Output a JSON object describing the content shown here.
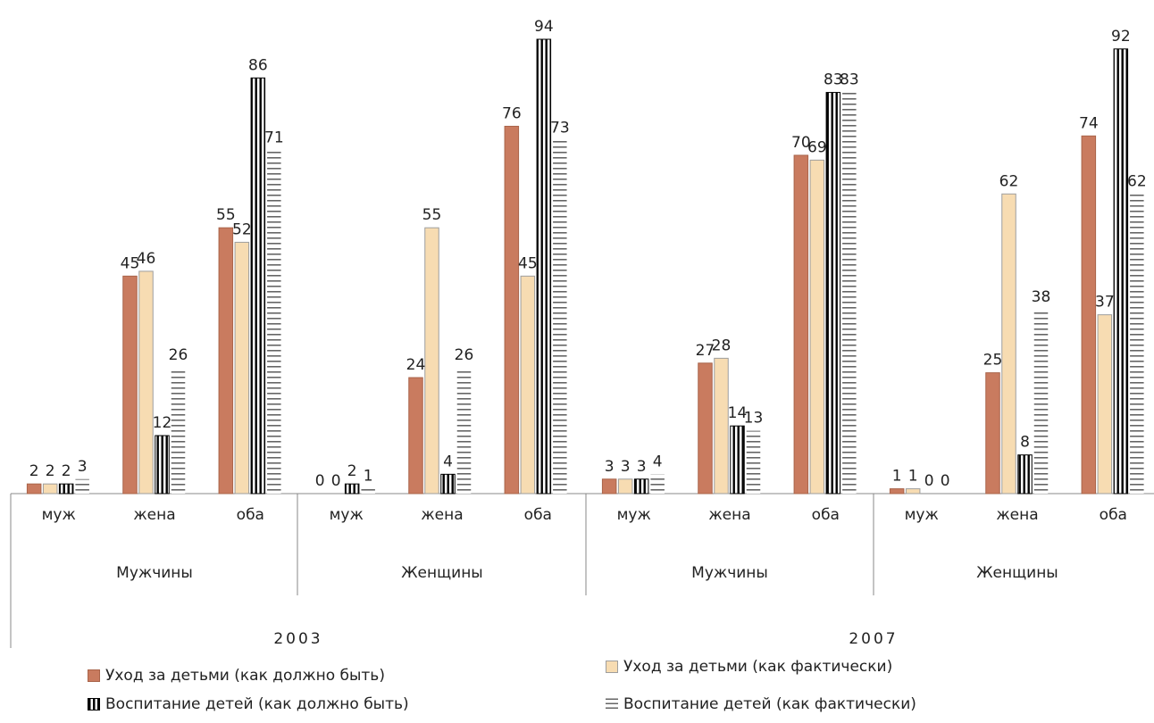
{
  "chart_data": {
    "type": "bar",
    "title": "",
    "xlabel": "",
    "ylabel": "",
    "ylim": [
      0,
      100
    ],
    "grid": false,
    "legend_position": "bottom",
    "years": [
      {
        "label": "2003",
        "groups": [
          {
            "label": "Мужчины",
            "categories": [
              "муж",
              "жена",
              "оба"
            ]
          },
          {
            "label": "Женщины",
            "categories": [
              "муж",
              "жена",
              "оба"
            ]
          }
        ]
      },
      {
        "label": "2007",
        "groups": [
          {
            "label": "Мужчины",
            "categories": [
              "муж",
              "жена",
              "оба"
            ]
          },
          {
            "label": "Женщины",
            "categories": [
              "муж",
              "жена",
              "оба"
            ]
          }
        ]
      }
    ],
    "series": [
      {
        "name": "Уход за детьми (как должно быть)",
        "color": "#c97b5f",
        "pattern": "solid",
        "values": [
          2,
          45,
          55,
          0,
          24,
          76,
          3,
          27,
          70,
          1,
          25,
          74
        ]
      },
      {
        "name": "Уход за детьми (как фактически)",
        "color": "#f7dcb2",
        "pattern": "solid",
        "values": [
          2,
          46,
          52,
          0,
          55,
          45,
          3,
          28,
          69,
          1,
          62,
          37
        ]
      },
      {
        "name": "Воспитание детей (как должно быть)",
        "color": "#000000",
        "pattern": "vertical-stripes",
        "values": [
          2,
          12,
          86,
          2,
          4,
          94,
          3,
          14,
          83,
          0,
          8,
          92
        ]
      },
      {
        "name": "Воспитание детей (как фактически)",
        "color": "#666666",
        "pattern": "horizontal-stripes",
        "values": [
          3,
          26,
          71,
          1,
          26,
          73,
          4,
          13,
          83,
          0,
          38,
          62
        ]
      }
    ]
  }
}
